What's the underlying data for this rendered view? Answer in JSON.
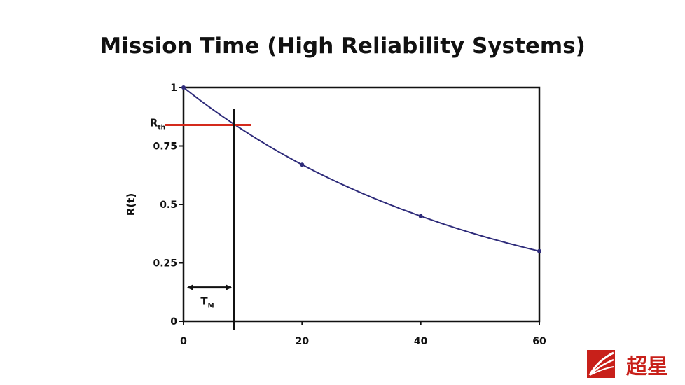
{
  "chart_data": {
    "type": "line",
    "title": "Mission Time (High Reliability Systems)",
    "xlabel": "",
    "ylabel": "R(t)",
    "xlim": [
      0,
      60
    ],
    "ylim": [
      0,
      1
    ],
    "x_ticks": [
      "0",
      "20",
      "40",
      "60"
    ],
    "y_ticks": [
      "0",
      "0.25",
      "0.5",
      "0.75",
      "1"
    ],
    "grid": false,
    "series": [
      {
        "x": [
          0,
          20,
          40,
          60
        ],
        "values": [
          1.0,
          0.67,
          0.45,
          0.3
        ],
        "color": "#2e2b7a"
      }
    ],
    "threshold": {
      "label_main": "R",
      "label_sub": "th",
      "value": 0.84,
      "color": "#d42a1c"
    },
    "mission_time": {
      "label_main": "T",
      "label_sub": "M",
      "value": 8.5
    }
  },
  "logo": {
    "name": "chaoxing-logo",
    "text": "超星"
  }
}
